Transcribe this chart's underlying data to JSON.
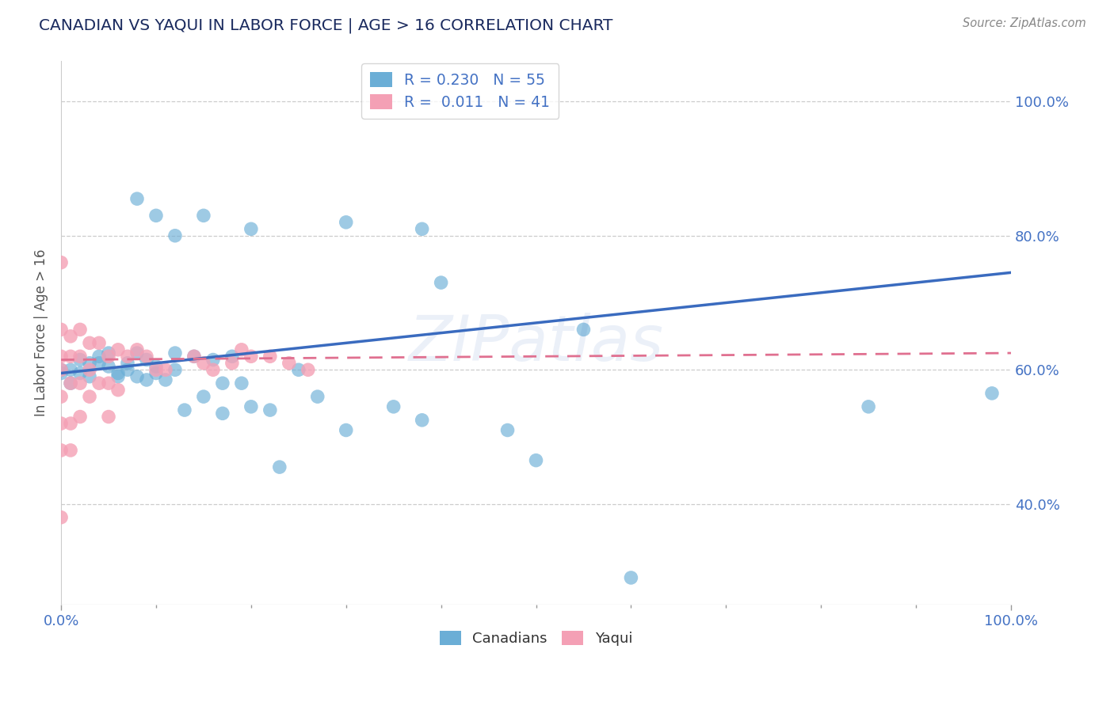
{
  "title": "CANADIAN VS YAQUI IN LABOR FORCE | AGE > 16 CORRELATION CHART",
  "source_text": "Source: ZipAtlas.com",
  "ylabel": "In Labor Force | Age > 16",
  "xlim": [
    0.0,
    1.0
  ],
  "ylim": [
    0.25,
    1.06
  ],
  "ytick_values": [
    0.4,
    0.6,
    0.8,
    1.0
  ],
  "ytick_labels": [
    "40.0%",
    "60.0%",
    "80.0%",
    "100.0%"
  ],
  "canadian_color": "#6baed6",
  "yaqui_color": "#f4a0b5",
  "canadian_R": 0.23,
  "canadian_N": 55,
  "yaqui_R": 0.011,
  "yaqui_N": 41,
  "background_color": "#ffffff",
  "grid_color": "#cccccc",
  "watermark": "ZIPatlas",
  "can_line_start_y": 0.595,
  "can_line_end_y": 0.745,
  "yaq_line_start_y": 0.615,
  "yaq_line_end_y": 0.625,
  "canadians_x": [
    0.98,
    0.85,
    0.6,
    0.55,
    0.5,
    0.47,
    0.38,
    0.35,
    0.3,
    0.27,
    0.25,
    0.23,
    0.22,
    0.2,
    0.19,
    0.18,
    0.17,
    0.17,
    0.16,
    0.15,
    0.14,
    0.13,
    0.12,
    0.12,
    0.11,
    0.1,
    0.1,
    0.09,
    0.09,
    0.08,
    0.08,
    0.07,
    0.07,
    0.06,
    0.06,
    0.05,
    0.05,
    0.04,
    0.04,
    0.03,
    0.03,
    0.02,
    0.02,
    0.01,
    0.01,
    0.0,
    0.0,
    0.2,
    0.3,
    0.4,
    0.38,
    0.15,
    0.12,
    0.1,
    0.08
  ],
  "canadians_y": [
    0.565,
    0.545,
    0.29,
    0.66,
    0.465,
    0.51,
    0.525,
    0.545,
    0.51,
    0.56,
    0.6,
    0.455,
    0.54,
    0.545,
    0.58,
    0.62,
    0.535,
    0.58,
    0.615,
    0.56,
    0.62,
    0.54,
    0.6,
    0.625,
    0.585,
    0.595,
    0.605,
    0.585,
    0.615,
    0.625,
    0.59,
    0.61,
    0.6,
    0.595,
    0.59,
    0.605,
    0.625,
    0.61,
    0.62,
    0.59,
    0.61,
    0.595,
    0.615,
    0.6,
    0.58,
    0.595,
    0.6,
    0.81,
    0.82,
    0.73,
    0.81,
    0.83,
    0.8,
    0.83,
    0.855
  ],
  "yaqui_x": [
    0.0,
    0.0,
    0.0,
    0.0,
    0.0,
    0.0,
    0.0,
    0.0,
    0.01,
    0.01,
    0.01,
    0.01,
    0.01,
    0.02,
    0.02,
    0.02,
    0.02,
    0.03,
    0.03,
    0.03,
    0.04,
    0.04,
    0.05,
    0.05,
    0.05,
    0.06,
    0.06,
    0.07,
    0.08,
    0.09,
    0.1,
    0.11,
    0.14,
    0.16,
    0.18,
    0.2,
    0.22,
    0.24,
    0.26,
    0.19,
    0.15
  ],
  "yaqui_y": [
    0.76,
    0.66,
    0.62,
    0.6,
    0.56,
    0.52,
    0.48,
    0.38,
    0.65,
    0.62,
    0.58,
    0.52,
    0.48,
    0.66,
    0.62,
    0.58,
    0.53,
    0.64,
    0.6,
    0.56,
    0.64,
    0.58,
    0.62,
    0.58,
    0.53,
    0.63,
    0.57,
    0.62,
    0.63,
    0.62,
    0.6,
    0.6,
    0.62,
    0.6,
    0.61,
    0.62,
    0.62,
    0.61,
    0.6,
    0.63,
    0.61
  ]
}
